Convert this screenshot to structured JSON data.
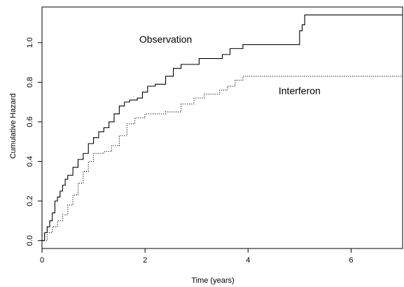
{
  "chart_data": {
    "type": "line",
    "title": "",
    "xlabel": "Time (years)",
    "ylabel": "Cumulative Hazard",
    "xlim": [
      0,
      7
    ],
    "ylim": [
      -0.04,
      1.18
    ],
    "xticks": [
      0,
      2,
      4,
      6
    ],
    "xtick_labels": [
      "0",
      "2",
      "4",
      "6"
    ],
    "yticks": [
      0.0,
      0.2,
      0.4,
      0.6,
      0.8,
      1.0
    ],
    "ytick_labels": [
      "0.0",
      "0.2",
      "0.4",
      "0.6",
      "0.8",
      "1.0"
    ],
    "grid": false,
    "legend": "none",
    "series": [
      {
        "name": "Observation",
        "line_style": "solid",
        "color": "#000000",
        "step": true,
        "points": [
          [
            0.0,
            0.0
          ],
          [
            0.05,
            0.04
          ],
          [
            0.1,
            0.07
          ],
          [
            0.15,
            0.1
          ],
          [
            0.2,
            0.14
          ],
          [
            0.25,
            0.2
          ],
          [
            0.3,
            0.22
          ],
          [
            0.35,
            0.25
          ],
          [
            0.4,
            0.28
          ],
          [
            0.45,
            0.31
          ],
          [
            0.5,
            0.33
          ],
          [
            0.6,
            0.37
          ],
          [
            0.7,
            0.41
          ],
          [
            0.8,
            0.44
          ],
          [
            0.9,
            0.49
          ],
          [
            1.0,
            0.52
          ],
          [
            1.1,
            0.55
          ],
          [
            1.2,
            0.57
          ],
          [
            1.3,
            0.6
          ],
          [
            1.4,
            0.64
          ],
          [
            1.5,
            0.68
          ],
          [
            1.6,
            0.7
          ],
          [
            1.7,
            0.71
          ],
          [
            1.85,
            0.72
          ],
          [
            1.95,
            0.75
          ],
          [
            2.05,
            0.78
          ],
          [
            2.2,
            0.79
          ],
          [
            2.4,
            0.83
          ],
          [
            2.55,
            0.87
          ],
          [
            2.7,
            0.89
          ],
          [
            3.05,
            0.92
          ],
          [
            3.5,
            0.94
          ],
          [
            3.65,
            0.97
          ],
          [
            3.9,
            0.99
          ],
          [
            4.4,
            0.99
          ],
          [
            5.0,
            1.06
          ],
          [
            5.05,
            1.09
          ],
          [
            5.1,
            1.14
          ],
          [
            7.0,
            1.14
          ]
        ]
      },
      {
        "name": "Interferon",
        "line_style": "dotted",
        "color": "#000000",
        "step": true,
        "points": [
          [
            0.0,
            0.0
          ],
          [
            0.1,
            0.04
          ],
          [
            0.2,
            0.07
          ],
          [
            0.3,
            0.1
          ],
          [
            0.4,
            0.13
          ],
          [
            0.5,
            0.18
          ],
          [
            0.6,
            0.23
          ],
          [
            0.7,
            0.29
          ],
          [
            0.8,
            0.35
          ],
          [
            0.9,
            0.4
          ],
          [
            1.0,
            0.44
          ],
          [
            1.2,
            0.45
          ],
          [
            1.35,
            0.48
          ],
          [
            1.5,
            0.53
          ],
          [
            1.65,
            0.59
          ],
          [
            1.8,
            0.62
          ],
          [
            2.0,
            0.64
          ],
          [
            2.4,
            0.65
          ],
          [
            2.7,
            0.69
          ],
          [
            2.95,
            0.72
          ],
          [
            3.15,
            0.74
          ],
          [
            3.45,
            0.76
          ],
          [
            3.6,
            0.78
          ],
          [
            3.75,
            0.81
          ],
          [
            3.9,
            0.83
          ],
          [
            7.0,
            0.83
          ]
        ]
      }
    ],
    "annotations": [
      {
        "text": "Observation",
        "x": 2.4,
        "y": 1.0
      },
      {
        "text": "Interferon",
        "x": 5.0,
        "y": 0.74
      }
    ]
  }
}
